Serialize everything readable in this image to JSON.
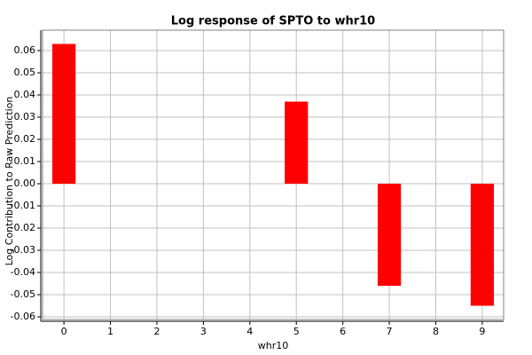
{
  "chart_data": {
    "type": "bar",
    "title": "Log response of SPTO to whr10",
    "x_label": "whr10",
    "y_label": "Log Contribution to Raw Prediction",
    "x": [
      0,
      1,
      2,
      3,
      4,
      5,
      6,
      7,
      8,
      9
    ],
    "values": [
      0.063,
      null,
      null,
      null,
      null,
      0.037,
      null,
      -0.046,
      null,
      -0.055
    ],
    "color": "#ff0000",
    "xlim": [
      -0.46,
      9.46
    ],
    "xticks": [
      0,
      1,
      2,
      3,
      4,
      5,
      6,
      7,
      8,
      9
    ],
    "ylim": [
      -0.0612,
      0.0692
    ],
    "yticks": [
      -0.06,
      -0.05,
      -0.04,
      -0.03,
      -0.02,
      -0.01,
      {
        "value": 0,
        "label": "0.00"
      },
      0.01,
      0.02,
      0.03,
      0.04,
      0.05,
      0.06
    ],
    "grid": true
  }
}
